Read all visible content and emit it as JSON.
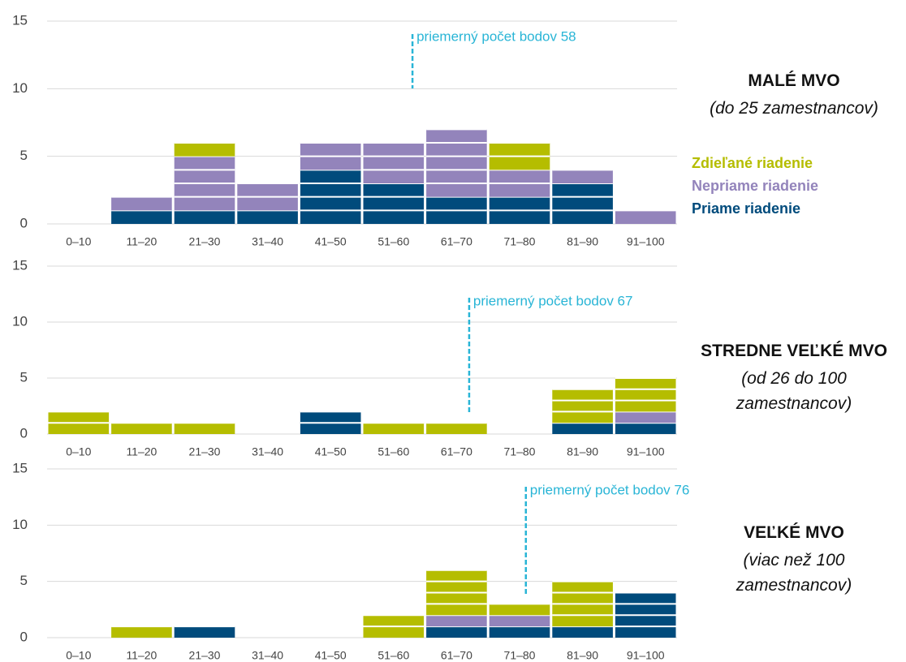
{
  "chart_data": [
    {
      "type": "bar",
      "title": "MALÉ MVO",
      "subtitle": "(do 25 zamestnancov)",
      "categories": [
        "0–10",
        "11–20",
        "21–30",
        "31–40",
        "41–50",
        "51–60",
        "61–70",
        "71–80",
        "81–90",
        "91–100"
      ],
      "series": [
        {
          "name": "Priame riadenie",
          "color": "#004b7c",
          "values": [
            0,
            1,
            1,
            1,
            4,
            3,
            2,
            2,
            3,
            0
          ]
        },
        {
          "name": "Nepriame riadenie",
          "color": "#9384bb",
          "values": [
            0,
            1,
            4,
            2,
            2,
            3,
            5,
            2,
            1,
            1
          ]
        },
        {
          "name": "Zdieľané riadenie",
          "color": "#b5bd00",
          "values": [
            0,
            0,
            1,
            0,
            0,
            0,
            0,
            2,
            0,
            0
          ]
        }
      ],
      "ylim": [
        0,
        15
      ],
      "yticks": [
        0,
        5,
        10,
        15
      ],
      "xlim": [
        0,
        100
      ],
      "grid": true,
      "legend": "right",
      "mean": 58,
      "mean_label": "priemerný počet bodov 58"
    },
    {
      "type": "bar",
      "title": "STREDNE VEĽKÉ MVO",
      "subtitle": "(od 26 do 100 zamestnancov)",
      "categories": [
        "0–10",
        "11–20",
        "21–30",
        "31–40",
        "41–50",
        "51–60",
        "61–70",
        "71–80",
        "81–90",
        "91–100"
      ],
      "series": [
        {
          "color": "#004b7c",
          "values": [
            0,
            0,
            0,
            0,
            2,
            0,
            0,
            0,
            1,
            1
          ]
        },
        {
          "color": "#9384bb",
          "values": [
            0,
            0,
            0,
            0,
            0,
            0,
            0,
            0,
            0,
            1
          ]
        },
        {
          "color": "#b5bd00",
          "values": [
            2,
            1,
            1,
            0,
            0,
            1,
            1,
            0,
            3,
            3
          ]
        }
      ],
      "ylim": [
        0,
        15
      ],
      "yticks": [
        0,
        5,
        10,
        15
      ],
      "xlim": [
        0,
        100
      ],
      "grid": true,
      "mean": 67,
      "mean_label": "priemerný počet bodov 67"
    },
    {
      "type": "bar",
      "title": "VEĽKÉ MVO",
      "subtitle": "(viac než 100 zamestnancov)",
      "categories": [
        "0–10",
        "11–20",
        "21–30",
        "31–40",
        "41–50",
        "51–60",
        "61–70",
        "71–80",
        "81–90",
        "91–100"
      ],
      "series": [
        {
          "color": "#004b7c",
          "values": [
            0,
            0,
            1,
            0,
            0,
            0,
            1,
            1,
            1,
            4
          ]
        },
        {
          "color": "#9384bb",
          "values": [
            0,
            0,
            0,
            0,
            0,
            0,
            1,
            1,
            0,
            0
          ]
        },
        {
          "color": "#b5bd00",
          "values": [
            0,
            1,
            0,
            0,
            0,
            2,
            4,
            1,
            4,
            0
          ]
        }
      ],
      "ylim": [
        0,
        15
      ],
      "yticks": [
        0,
        5,
        10,
        15
      ],
      "xlim": [
        0,
        100
      ],
      "grid": true,
      "mean": 76,
      "mean_label": "priemerný počet bodov 76"
    }
  ]
}
